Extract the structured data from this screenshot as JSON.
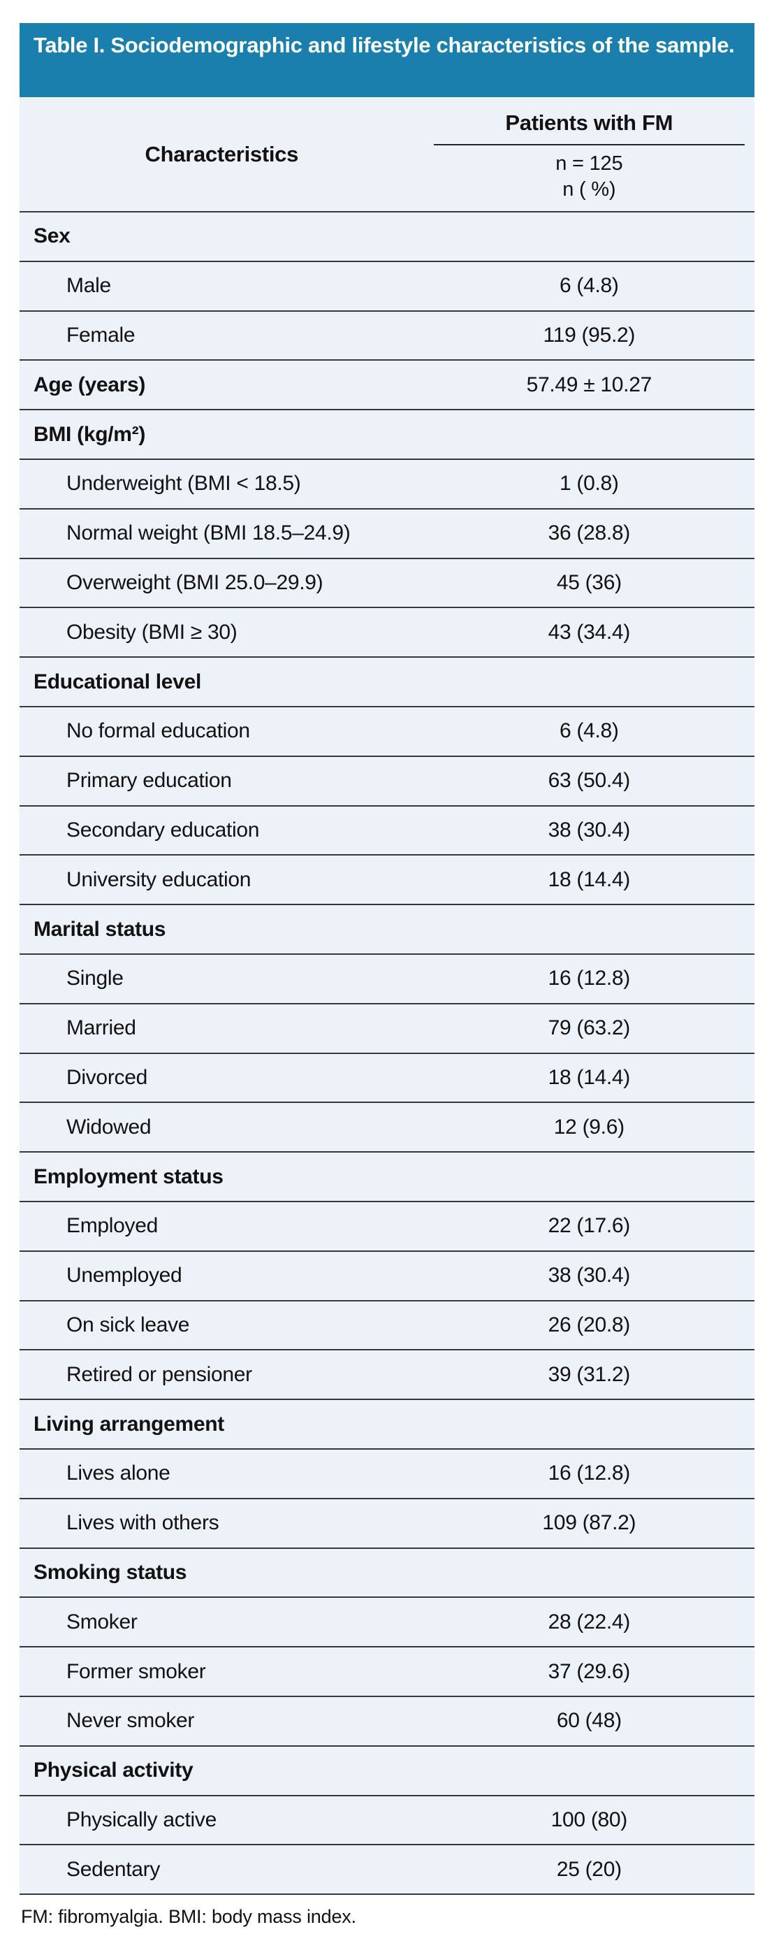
{
  "colors": {
    "header_bg": "#1a7fac",
    "table_bg": "#edf1f8",
    "line": "#35393f",
    "text": "#121212",
    "title_text": "#ffffff"
  },
  "table": {
    "title": "Table I. Sociodemographic and lifestyle characteristics of the sample.",
    "header": {
      "characteristics_label": "Characteristics",
      "group_label": "Patients with FM",
      "subheader_line1": "n = 125",
      "subheader_line2": "n ( %)"
    },
    "rows": [
      {
        "label": "Sex",
        "value": "",
        "type": "group"
      },
      {
        "label": "Male",
        "value": "6 (4.8)",
        "type": "item"
      },
      {
        "label": "Female",
        "value": "119 (95.2)",
        "type": "item"
      },
      {
        "label": "Age (years)",
        "value": "57.49 ± 10.27",
        "type": "group"
      },
      {
        "label": "BMI (kg/m²)",
        "value": "",
        "type": "group"
      },
      {
        "label": "Underweight (BMI < 18.5)",
        "value": "1 (0.8)",
        "type": "item"
      },
      {
        "label": "Normal weight (BMI 18.5–24.9)",
        "value": "36 (28.8)",
        "type": "item"
      },
      {
        "label": "Overweight (BMI 25.0–29.9)",
        "value": "45 (36)",
        "type": "item"
      },
      {
        "label": "Obesity (BMI ≥ 30)",
        "value": "43 (34.4)",
        "type": "item"
      },
      {
        "label": "Educational level",
        "value": "",
        "type": "group"
      },
      {
        "label": "No formal education",
        "value": "6 (4.8)",
        "type": "item"
      },
      {
        "label": "Primary education",
        "value": "63 (50.4)",
        "type": "item"
      },
      {
        "label": "Secondary education",
        "value": "38 (30.4)",
        "type": "item"
      },
      {
        "label": "University education",
        "value": "18 (14.4)",
        "type": "item"
      },
      {
        "label": "Marital status",
        "value": "",
        "type": "group"
      },
      {
        "label": "Single",
        "value": "16 (12.8)",
        "type": "item"
      },
      {
        "label": "Married",
        "value": "79 (63.2)",
        "type": "item"
      },
      {
        "label": "Divorced",
        "value": "18 (14.4)",
        "type": "item"
      },
      {
        "label": "Widowed",
        "value": "12 (9.6)",
        "type": "item"
      },
      {
        "label": "Employment status",
        "value": "",
        "type": "group"
      },
      {
        "label": "Employed",
        "value": "22 (17.6)",
        "type": "item"
      },
      {
        "label": "Unemployed",
        "value": "38 (30.4)",
        "type": "item"
      },
      {
        "label": "On sick leave",
        "value": "26 (20.8)",
        "type": "item"
      },
      {
        "label": "Retired or pensioner",
        "value": "39 (31.2)",
        "type": "item"
      },
      {
        "label": "Living arrangement",
        "value": "",
        "type": "group"
      },
      {
        "label": "Lives alone",
        "value": "16 (12.8)",
        "type": "item"
      },
      {
        "label": "Lives with others",
        "value": "109 (87.2)",
        "type": "item"
      },
      {
        "label": "Smoking status",
        "value": "",
        "type": "group"
      },
      {
        "label": "Smoker",
        "value": "28 (22.4)",
        "type": "item"
      },
      {
        "label": "Former smoker",
        "value": "37 (29.6)",
        "type": "item"
      },
      {
        "label": "Never smoker",
        "value": "60 (48)",
        "type": "item"
      },
      {
        "label": "Physical activity",
        "value": "",
        "type": "group"
      },
      {
        "label": "Physically active",
        "value": "100 (80)",
        "type": "item"
      },
      {
        "label": "Sedentary",
        "value": "25 (20)",
        "type": "item"
      }
    ],
    "footnote": "FM: fibromyalgia. BMI: body mass index."
  }
}
